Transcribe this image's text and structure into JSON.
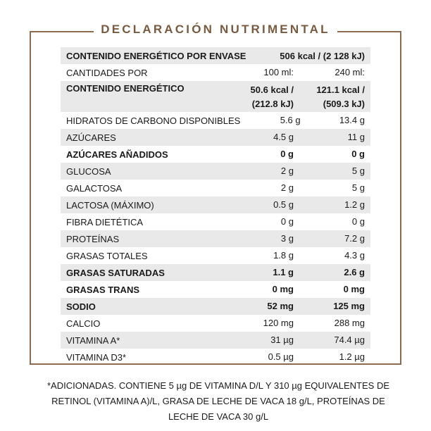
{
  "title": "DECLARACIÓN NUTRIMENTAL",
  "rows": [
    {
      "label": "CONTENIDO ENERGÉTICO POR ENVASE",
      "full": "506 kcal / (2 128 kJ)",
      "bold": true
    },
    {
      "label": "CANTIDADES POR",
      "v1": "100 ml:",
      "v2": "240 ml:",
      "bold": false
    },
    {
      "label": "CONTENIDO ENERGÉTICO",
      "v1": "50.6 kcal /\n(212.8 kJ)",
      "v2": "121.1 kcal /\n(509.3 kJ)",
      "bold": true,
      "tall": true
    },
    {
      "label": "HIDRATOS DE CARBONO DISPONIBLES",
      "v1": "5.6 g",
      "v2": "13.4 g",
      "bold": false
    },
    {
      "label": "AZÚCARES",
      "v1": "4.5 g",
      "v2": "11 g",
      "bold": false
    },
    {
      "label": "AZÚCARES AÑADIDOS",
      "v1": "0 g",
      "v2": "0 g",
      "bold": true
    },
    {
      "label": "GLUCOSA",
      "v1": "2 g",
      "v2": "5 g",
      "bold": false
    },
    {
      "label": "GALACTOSA",
      "v1": "2 g",
      "v2": "5 g",
      "bold": false
    },
    {
      "label": "LACTOSA (MÁXIMO)",
      "v1": "0.5 g",
      "v2": "1.2 g",
      "bold": false
    },
    {
      "label": "FIBRA DIETÉTICA",
      "v1": "0 g",
      "v2": "0 g",
      "bold": false
    },
    {
      "label": "PROTEÍNAS",
      "v1": "3 g",
      "v2": "7.2 g",
      "bold": false
    },
    {
      "label": "GRASAS TOTALES",
      "v1": "1.8 g",
      "v2": "4.3 g",
      "bold": false
    },
    {
      "label": "GRASAS SATURADAS",
      "v1": "1.1 g",
      "v2": "2.6 g",
      "bold": true
    },
    {
      "label": "GRASAS TRANS",
      "v1": "0 mg",
      "v2": "0 mg",
      "bold": true
    },
    {
      "label": "SODIO",
      "v1": "52 mg",
      "v2": "125 mg",
      "bold": true
    },
    {
      "label": "CALCIO",
      "v1": "120 mg",
      "v2": "288 mg",
      "bold": false
    },
    {
      "label": "VITAMINA A*",
      "v1": "31 µg",
      "v2": "74.4 µg",
      "bold": false
    },
    {
      "label": "VITAMINA D3*",
      "v1": "0.5 µg",
      "v2": "1.2 µg",
      "bold": false
    }
  ],
  "footnote": "*ADICIONADAS. CONTIENE 5 µg DE VITAMINA D/L Y 310 µg EQUIVALENTES DE RETINOL (VITAMINA A)/L, GRASA DE LECHE DE VACA 18 g/L, PROTEÍNAS DE LECHE DE VACA 30 g/L",
  "colors": {
    "border": "#8b6a4f",
    "title": "#7a5a3f",
    "stripe": "#e9e9e9"
  }
}
